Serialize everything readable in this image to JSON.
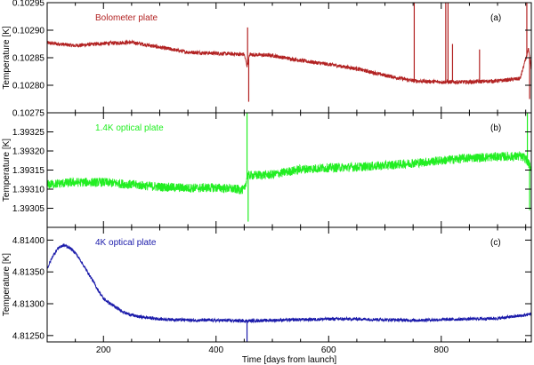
{
  "chart_data": [
    {
      "type": "line",
      "title": "Bolometer plate",
      "tag": "(a)",
      "color": "#b22222",
      "ylabel": "Temperature [K]",
      "xlabel": "",
      "xlim": [
        100,
        960
      ],
      "ylim": [
        0.10275,
        0.10295
      ],
      "yticks": [
        0.10275,
        0.1028,
        0.10285,
        0.1029,
        0.10295
      ],
      "ytick_labels": [
        "0.10275",
        "0.10280",
        "0.10285",
        "0.10290",
        "0.10295"
      ],
      "noise": 3.5e-06,
      "x": [
        100,
        150,
        200,
        250,
        300,
        350,
        400,
        450,
        455,
        460,
        500,
        550,
        600,
        650,
        700,
        750,
        800,
        850,
        900,
        940,
        955,
        960
      ],
      "y": [
        0.102877,
        0.102872,
        0.102876,
        0.102878,
        0.102869,
        0.10286,
        0.102858,
        0.102856,
        0.102835,
        0.102856,
        0.102854,
        0.102845,
        0.102838,
        0.10283,
        0.102818,
        0.102808,
        0.102806,
        0.102806,
        0.102808,
        0.102812,
        0.102865,
        0.10283
      ],
      "spikes": [
        {
          "x": 456,
          "y": 0.102905
        },
        {
          "x": 458,
          "y": 0.10277
        },
        {
          "x": 752,
          "y": 0.10295
        },
        {
          "x": 808,
          "y": 0.10295
        },
        {
          "x": 812,
          "y": 0.10295
        },
        {
          "x": 820,
          "y": 0.102875
        },
        {
          "x": 868,
          "y": 0.102865
        },
        {
          "x": 952,
          "y": 0.10295
        },
        {
          "x": 957,
          "y": 0.102775
        }
      ]
    },
    {
      "type": "line",
      "title": "1.4K optical plate",
      "tag": "(b)",
      "color": "#22ee22",
      "ylabel": "Temperature [K]",
      "xlabel": "",
      "xlim": [
        100,
        960
      ],
      "ylim": [
        1.393,
        1.3933
      ],
      "yticks": [
        1.39305,
        1.3931,
        1.39315,
        1.3932,
        1.39325
      ],
      "ytick_labels": [
        "1.39305",
        "1.39310",
        "1.39315",
        "1.39320",
        "1.39325"
      ],
      "noise": 1.2e-05,
      "x": [
        100,
        150,
        200,
        250,
        300,
        350,
        400,
        450,
        456,
        460,
        500,
        550,
        600,
        650,
        700,
        750,
        800,
        850,
        900,
        940,
        950,
        960
      ],
      "y": [
        1.393112,
        1.393118,
        1.393118,
        1.393112,
        1.393106,
        1.393103,
        1.393104,
        1.393098,
        1.393136,
        1.393136,
        1.393138,
        1.393152,
        1.393156,
        1.393158,
        1.393162,
        1.393168,
        1.393175,
        1.393182,
        1.393185,
        1.393186,
        1.39318,
        1.393155
      ],
      "spikes": [
        {
          "x": 455,
          "y": 1.3933
        },
        {
          "x": 457,
          "y": 1.393015
        },
        {
          "x": 953,
          "y": 1.3933
        },
        {
          "x": 957,
          "y": 1.393045
        }
      ]
    },
    {
      "type": "line",
      "title": "4K optical plate",
      "tag": "(c)",
      "color": "#1a1aaa",
      "ylabel": "Temperature [K]",
      "xlabel": "Time [days from launch]",
      "xlim": [
        100,
        960
      ],
      "ylim": [
        4.8124,
        4.8142
      ],
      "yticks": [
        4.8125,
        4.813,
        4.8135,
        4.814
      ],
      "ytick_labels": [
        "4.81250",
        "4.81300",
        "4.81350",
        "4.81400"
      ],
      "xticks": [
        200,
        400,
        600,
        800
      ],
      "xtick_labels": [
        "200",
        "400",
        "600",
        "800"
      ],
      "noise": 2.5e-05,
      "x": [
        100,
        110,
        120,
        130,
        140,
        150,
        160,
        170,
        180,
        190,
        200,
        220,
        240,
        260,
        280,
        300,
        330,
        360,
        400,
        450,
        500,
        550,
        600,
        650,
        700,
        750,
        800,
        850,
        900,
        950,
        960
      ],
      "y": [
        4.81355,
        4.81375,
        4.81388,
        4.81392,
        4.81388,
        4.8138,
        4.81367,
        4.81352,
        4.81338,
        4.81322,
        4.81308,
        4.81295,
        4.81285,
        4.8128,
        4.81278,
        4.81276,
        4.81275,
        4.81274,
        4.81274,
        4.81273,
        4.81274,
        4.81275,
        4.81276,
        4.81276,
        4.81275,
        4.81274,
        4.81275,
        4.81276,
        4.81277,
        4.81282,
        4.81285
      ],
      "spikes": [
        {
          "x": 455,
          "y": 4.8124
        }
      ]
    }
  ]
}
